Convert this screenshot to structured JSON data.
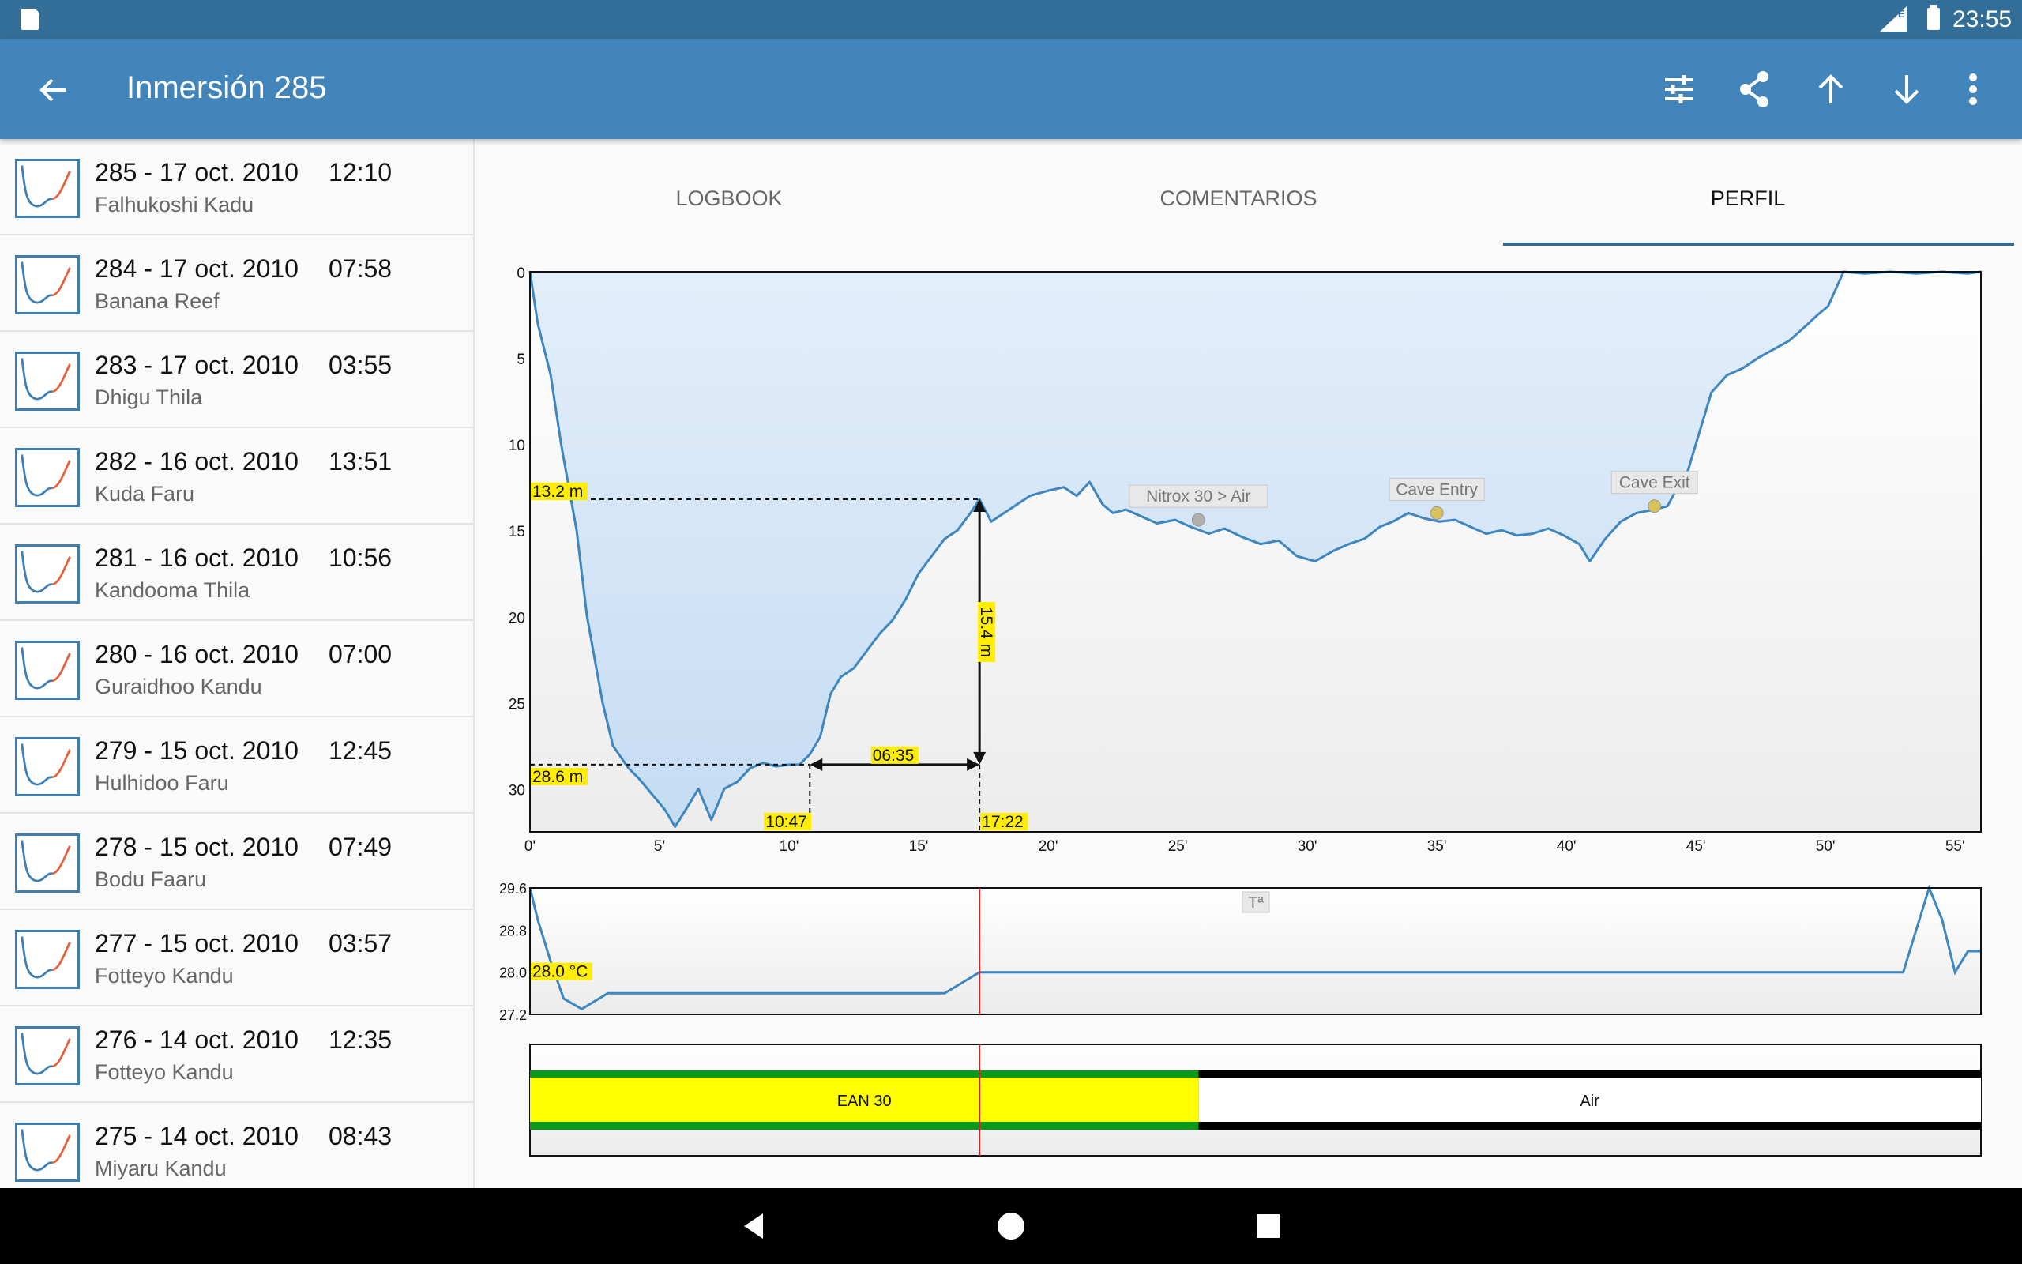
{
  "status_bar": {
    "network": "LTE",
    "time": "23:55"
  },
  "app_bar": {
    "title": "Inmersión 285",
    "actions": [
      "settings-sliders-icon",
      "share-icon",
      "arrow-up-icon",
      "arrow-down-icon",
      "more-vert-icon"
    ]
  },
  "dives": [
    {
      "number_date": "285 - 17 oct. 2010",
      "time": "12:10",
      "site": "Falhukoshi Kadu"
    },
    {
      "number_date": "284 - 17 oct. 2010",
      "time": "07:58",
      "site": "Banana Reef"
    },
    {
      "number_date": "283 - 17 oct. 2010",
      "time": "03:55",
      "site": "Dhigu Thila"
    },
    {
      "number_date": "282 - 16 oct. 2010",
      "time": "13:51",
      "site": "Kuda Faru"
    },
    {
      "number_date": "281 - 16 oct. 2010",
      "time": "10:56",
      "site": "Kandooma Thila"
    },
    {
      "number_date": "280 - 16 oct. 2010",
      "time": "07:00",
      "site": "Guraidhoo Kandu"
    },
    {
      "number_date": "279 - 15 oct. 2010",
      "time": "12:45",
      "site": "Hulhidoo Faru"
    },
    {
      "number_date": "278 - 15 oct. 2010",
      "time": "07:49",
      "site": "Bodu Faaru"
    },
    {
      "number_date": "277 - 15 oct. 2010",
      "time": "03:57",
      "site": "Fotteyo Kandu"
    },
    {
      "number_date": "276 - 14 oct. 2010",
      "time": "12:35",
      "site": "Fotteyo Kandu"
    },
    {
      "number_date": "275 - 14 oct. 2010",
      "time": "08:43",
      "site": "Miyaru Kandu"
    }
  ],
  "tabs": [
    {
      "label": "LOGBOOK",
      "active": false
    },
    {
      "label": "COMENTARIOS",
      "active": false
    },
    {
      "label": "PERFIL",
      "active": true
    }
  ],
  "colors": {
    "status_bar": "#336e98",
    "app_bar": "#4185bb",
    "profile_line": "#3d86bf",
    "profile_fill": "#c5dcf3",
    "highlight": "#ffee00",
    "cursor": "#e02020",
    "gas_ean": "#ffff00",
    "gas_border": "#0a9a1a"
  },
  "chart_data": [
    {
      "type": "area",
      "name": "depth-profile",
      "x_unit": "min",
      "y_unit": "m",
      "xlim": [
        0,
        56
      ],
      "ylim": [
        0,
        32.5
      ],
      "y_inverted": true,
      "x_ticks": [
        "0'",
        "5'",
        "10'",
        "15'",
        "20'",
        "25'",
        "30'",
        "35'",
        "40'",
        "45'",
        "50'",
        "55'"
      ],
      "y_ticks": [
        "0",
        "5",
        "10",
        "15",
        "20",
        "25",
        "30"
      ],
      "x": [
        0,
        0.3,
        0.8,
        1.2,
        1.8,
        2.2,
        2.8,
        3.2,
        3.8,
        4.2,
        4.7,
        5.2,
        5.6,
        6.1,
        6.5,
        7.0,
        7.5,
        8.0,
        8.5,
        9.0,
        9.5,
        10.0,
        10.4,
        10.8,
        11.2,
        11.6,
        12.0,
        12.5,
        13.0,
        13.5,
        14.0,
        14.5,
        15.0,
        15.5,
        16.0,
        16.5,
        17.0,
        17.35,
        17.8,
        18.3,
        18.8,
        19.3,
        20.0,
        20.6,
        21.1,
        21.6,
        22.1,
        22.5,
        23.0,
        23.6,
        24.2,
        24.9,
        25.5,
        26.2,
        26.8,
        27.5,
        28.2,
        28.9,
        29.6,
        30.3,
        31.0,
        31.6,
        32.2,
        32.8,
        33.3,
        33.9,
        34.5,
        35.1,
        35.7,
        36.3,
        36.9,
        37.5,
        38.1,
        38.7,
        39.3,
        39.9,
        40.5,
        40.9,
        41.5,
        42.1,
        42.7,
        43.4,
        43.9,
        44.3,
        44.7,
        45.1,
        45.6,
        46.2,
        46.8,
        47.4,
        48.0,
        48.6,
        49.2,
        49.7,
        50.1,
        50.7,
        51.5,
        52.5,
        53.5,
        54.5,
        55.5,
        56
      ],
      "y": [
        0,
        3,
        6,
        10,
        15,
        20,
        25,
        27.5,
        28.8,
        29.4,
        30.3,
        31.2,
        32.2,
        31.0,
        30.0,
        31.8,
        30.0,
        29.6,
        28.8,
        28.5,
        28.7,
        28.6,
        28.6,
        28.0,
        27.0,
        24.5,
        23.5,
        23.0,
        22.0,
        21.0,
        20.2,
        19.0,
        17.5,
        16.5,
        15.5,
        15.0,
        14.0,
        13.2,
        14.5,
        14.0,
        13.5,
        13.0,
        12.7,
        12.5,
        13.0,
        12.2,
        13.5,
        14.0,
        13.8,
        14.2,
        14.6,
        14.4,
        14.8,
        15.2,
        14.9,
        15.4,
        15.8,
        15.6,
        16.5,
        16.8,
        16.2,
        15.8,
        15.5,
        14.8,
        14.5,
        14.0,
        14.3,
        14.5,
        14.4,
        14.8,
        15.2,
        15.0,
        15.3,
        15.2,
        14.9,
        15.3,
        15.8,
        16.8,
        15.5,
        14.5,
        14.0,
        13.8,
        13.6,
        12.5,
        11.5,
        9.5,
        7.0,
        6.0,
        5.6,
        5.0,
        4.5,
        4.0,
        3.2,
        2.5,
        2.0,
        0,
        0.1,
        0,
        0.1,
        0,
        0.1,
        0
      ],
      "annotations": [
        {
          "x": 0,
          "y": 13.2,
          "label": "13.2 m"
        },
        {
          "x": 0,
          "y": 28.6,
          "label": "28.6 m"
        },
        {
          "x": 10.8,
          "y": 32.5,
          "label": "10:47"
        },
        {
          "x": 17.35,
          "y": 32.5,
          "label": "17:22"
        },
        {
          "x": 14.1,
          "y": 28.6,
          "label": "06:35"
        },
        {
          "x": 17.35,
          "y": 20.9,
          "label": "15.4 m"
        }
      ],
      "events": [
        {
          "x": 25.8,
          "y": 14.4,
          "label": "Nitrox 30 > Air"
        },
        {
          "x": 35.0,
          "y": 14.0,
          "label": "Cave Entry"
        },
        {
          "x": 43.4,
          "y": 13.6,
          "label": "Cave Exit"
        }
      ]
    },
    {
      "type": "line",
      "name": "temperature",
      "x_unit": "min",
      "y_unit": "°C",
      "xlim": [
        0,
        56
      ],
      "ylim": [
        27.2,
        29.6
      ],
      "y_ticks": [
        "29.6",
        "28.8",
        "28.0",
        "27.2"
      ],
      "title": "Tª",
      "current_label": "28.0 °C",
      "x": [
        0,
        0.3,
        0.8,
        1.3,
        2.0,
        3.0,
        5.0,
        8.0,
        10.0,
        12.0,
        14.0,
        16.0,
        17.35,
        20.0,
        23.0,
        26.0,
        29.0,
        32.0,
        35.0,
        38.0,
        41.0,
        44.0,
        47.0,
        50.0,
        52.0,
        53.0,
        54.0,
        54.5,
        55.0,
        55.5,
        56
      ],
      "y": [
        29.6,
        29.0,
        28.2,
        27.5,
        27.3,
        27.6,
        27.6,
        27.6,
        27.6,
        27.6,
        27.6,
        27.6,
        28.0,
        28.0,
        28.0,
        28.0,
        28.0,
        28.0,
        28.0,
        28.0,
        28.0,
        28.0,
        28.0,
        28.0,
        28.0,
        28.0,
        29.6,
        29.0,
        28.0,
        28.4,
        28.4
      ]
    },
    {
      "type": "bar",
      "name": "gas-usage",
      "xlim": [
        0,
        56
      ],
      "segments": [
        {
          "label": "EAN 30",
          "start": 0,
          "end": 25.8
        },
        {
          "label": "Air",
          "start": 25.8,
          "end": 56
        }
      ]
    }
  ],
  "cursor_time": 17.35
}
